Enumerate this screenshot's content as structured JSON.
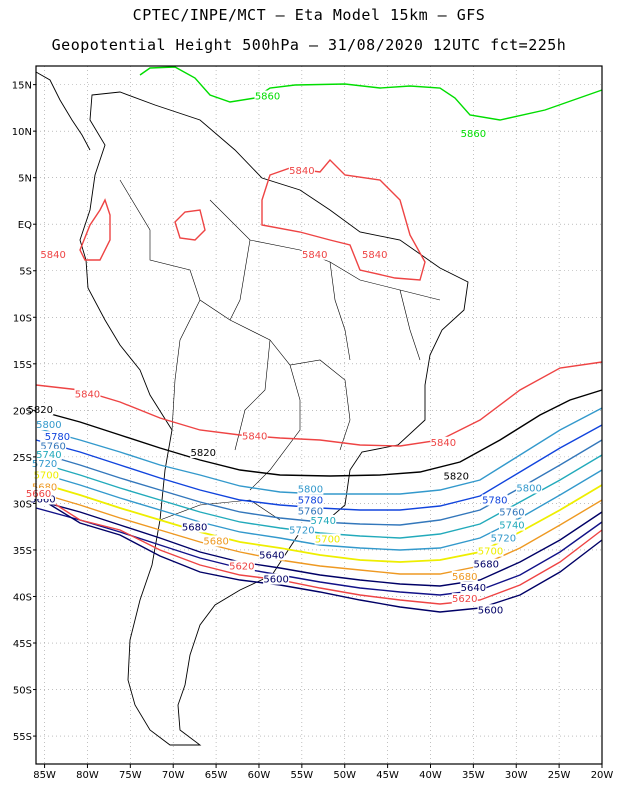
{
  "title": {
    "line1": "CPTEC/INPE/MCT –  Eta Model 15km – GFS",
    "line2": "Geopotential Height 500hPa – 31/08/2020 12UTC fct=225h"
  },
  "map": {
    "lon_range": [
      -86,
      -20
    ],
    "lat_range": [
      -58,
      17
    ],
    "lon_ticks": [
      "85W",
      "80W",
      "75W",
      "70W",
      "65W",
      "60W",
      "55W",
      "50W",
      "45W",
      "40W",
      "35W",
      "30W",
      "25W",
      "20W"
    ],
    "lat_ticks": [
      "15N",
      "10N",
      "5N",
      "EQ",
      "5S",
      "10S",
      "15S",
      "20S",
      "25S",
      "30S",
      "35S",
      "40S",
      "45S",
      "50S",
      "55S"
    ],
    "grid": "dotted"
  },
  "contours": [
    {
      "level": 5860,
      "color": "#00dd00"
    },
    {
      "level": 5840,
      "color": "#ee4444"
    },
    {
      "level": 5820,
      "color": "#000000"
    },
    {
      "level": 5800,
      "color": "#3399cc"
    },
    {
      "level": 5780,
      "color": "#1144dd"
    },
    {
      "level": 5760,
      "color": "#3377bb"
    },
    {
      "level": 5740,
      "color": "#22aabb"
    },
    {
      "level": 5720,
      "color": "#3399cc"
    },
    {
      "level": 5700,
      "color": "#eeee00"
    },
    {
      "level": 5680,
      "color": "#ee9922"
    },
    {
      "level": 5660,
      "color": "#000066"
    },
    {
      "level": 5640,
      "color": "#111188"
    },
    {
      "level": 5620,
      "color": "#ee4444"
    },
    {
      "level": 5600,
      "color": "#000066"
    }
  ],
  "labels": [
    {
      "text": "5860",
      "color": "#00dd00",
      "lon": -59,
      "lat": 13.5
    },
    {
      "text": "5860",
      "color": "#00dd00",
      "lon": -35,
      "lat": 9.5
    },
    {
      "text": "5840",
      "color": "#ee4444",
      "lon": -55,
      "lat": 5.5
    },
    {
      "text": "5840",
      "color": "#ee4444",
      "lon": -46.5,
      "lat": -3.5
    },
    {
      "text": "5840",
      "color": "#ee4444",
      "lon": -53.5,
      "lat": -3.5
    },
    {
      "text": "5840",
      "color": "#ee4444",
      "lon": -84,
      "lat": -3.5
    },
    {
      "text": "5840",
      "color": "#ee4444",
      "lon": -80,
      "lat": -18.5
    },
    {
      "text": "5840",
      "color": "#ee4444",
      "lon": -60.5,
      "lat": -23
    },
    {
      "text": "5840",
      "color": "#ee4444",
      "lon": -38.5,
      "lat": -23.7
    },
    {
      "text": "5820",
      "color": "#000000",
      "lon": -85.5,
      "lat": -20.2
    },
    {
      "text": "5820",
      "color": "#000000",
      "lon": -66.5,
      "lat": -24.8
    },
    {
      "text": "5820",
      "color": "#000000",
      "lon": -37,
      "lat": -27.3
    },
    {
      "text": "5800",
      "color": "#3399cc",
      "lon": -84.5,
      "lat": -21.8
    },
    {
      "text": "5800",
      "color": "#3399cc",
      "lon": -54,
      "lat": -28.7
    },
    {
      "text": "5800",
      "color": "#3399cc",
      "lon": -28.5,
      "lat": -28.6
    },
    {
      "text": "5780",
      "color": "#1144dd",
      "lon": -83.5,
      "lat": -23.1
    },
    {
      "text": "5780",
      "color": "#1144dd",
      "lon": -54,
      "lat": -29.9
    },
    {
      "text": "5780",
      "color": "#1144dd",
      "lon": -32.5,
      "lat": -29.9
    },
    {
      "text": "5760",
      "color": "#3377bb",
      "lon": -84,
      "lat": -24.1
    },
    {
      "text": "5760",
      "color": "#3377bb",
      "lon": -54,
      "lat": -31.1
    },
    {
      "text": "5760",
      "color": "#3377bb",
      "lon": -30.5,
      "lat": -31.2
    },
    {
      "text": "5740",
      "color": "#22aabb",
      "lon": -84.5,
      "lat": -25
    },
    {
      "text": "5740",
      "color": "#22aabb",
      "lon": -52.5,
      "lat": -32.1
    },
    {
      "text": "5740",
      "color": "#22aabb",
      "lon": -30.5,
      "lat": -32.6
    },
    {
      "text": "5720",
      "color": "#3399cc",
      "lon": -85,
      "lat": -26
    },
    {
      "text": "5720",
      "color": "#3399cc",
      "lon": -55,
      "lat": -33.1
    },
    {
      "text": "5720",
      "color": "#3399cc",
      "lon": -31.5,
      "lat": -34
    },
    {
      "text": "5700",
      "color": "#eeee00",
      "lon": -84.8,
      "lat": -27.2
    },
    {
      "text": "5700",
      "color": "#eeee00",
      "lon": -52,
      "lat": -34.1
    },
    {
      "text": "5700",
      "color": "#eeee00",
      "lon": -33,
      "lat": -35.4
    },
    {
      "text": "5680",
      "color": "#ee9922",
      "lon": -85,
      "lat": -28.5
    },
    {
      "text": "5680",
      "color": "#000066",
      "lon": -67.5,
      "lat": -32.8
    },
    {
      "text": "5680",
      "color": "#ee9922",
      "lon": -65,
      "lat": -34.3
    },
    {
      "text": "5680",
      "color": "#000066",
      "lon": -33.5,
      "lat": -36.8
    },
    {
      "text": "5680",
      "color": "#ee9922",
      "lon": -36,
      "lat": -38.1
    },
    {
      "text": "5660",
      "color": "#000066",
      "lon": -85.2,
      "lat": -29.8
    },
    {
      "text": "5660",
      "color": "#ee4444",
      "lon": -85.7,
      "lat": -29.2
    },
    {
      "text": "5640",
      "color": "#000066",
      "lon": -58.5,
      "lat": -35.8
    },
    {
      "text": "5640",
      "color": "#000066",
      "lon": -35,
      "lat": -39.3
    },
    {
      "text": "5620",
      "color": "#ee4444",
      "lon": -62,
      "lat": -37
    },
    {
      "text": "5620",
      "color": "#ee4444",
      "lon": -36,
      "lat": -40.5
    },
    {
      "text": "5600",
      "color": "#000066",
      "lon": -58,
      "lat": -38.4
    },
    {
      "text": "5600",
      "color": "#000066",
      "lon": -33,
      "lat": -41.7
    }
  ]
}
